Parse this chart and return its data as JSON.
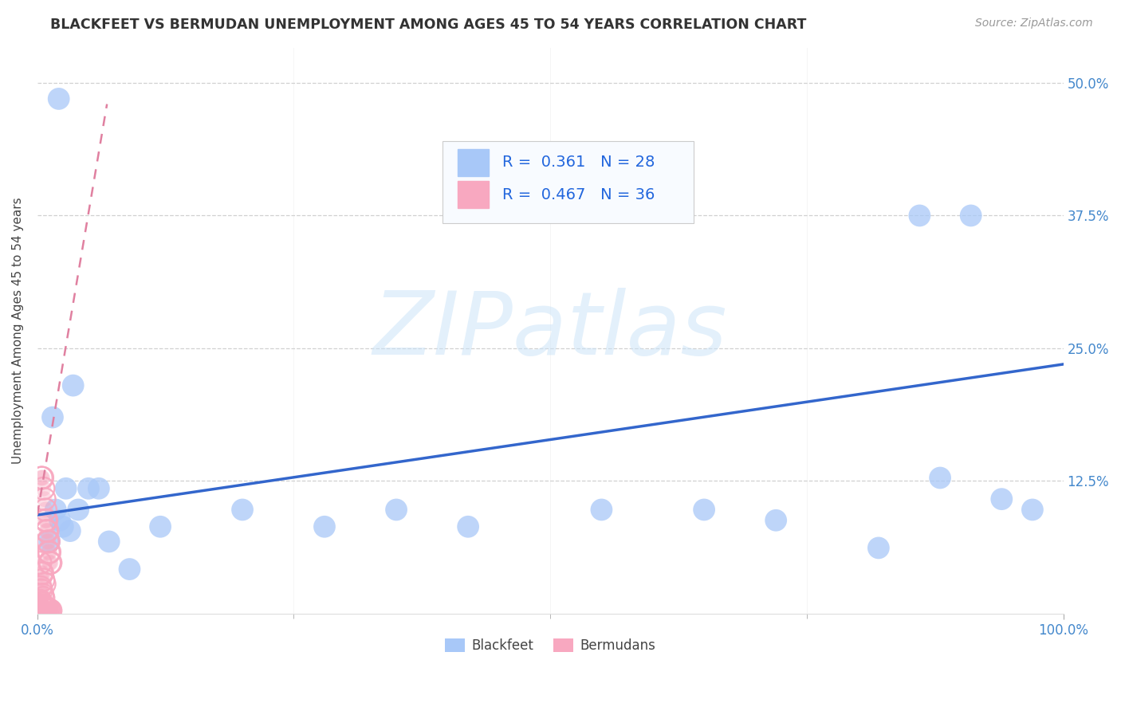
{
  "title": "BLACKFEET VS BERMUDAN UNEMPLOYMENT AMONG AGES 45 TO 54 YEARS CORRELATION CHART",
  "source": "Source: ZipAtlas.com",
  "ylabel": "Unemployment Among Ages 45 to 54 years",
  "xlim": [
    0.0,
    1.0
  ],
  "ylim": [
    0.0,
    0.5333
  ],
  "yticks": [
    0.125,
    0.25,
    0.375,
    0.5
  ],
  "ytick_labels": [
    "12.5%",
    "25.0%",
    "37.5%",
    "50.0%"
  ],
  "xticks": [
    0.0,
    1.0
  ],
  "xtick_labels": [
    "0.0%",
    "100.0%"
  ],
  "blackfeet_color": "#a8c8f8",
  "bermudans_color": "#f8a8c0",
  "blackfeet_line_color": "#3366cc",
  "bermudans_line_color": "#e080a0",
  "R_blackfeet": 0.361,
  "N_blackfeet": 28,
  "R_bermudans": 0.467,
  "N_bermudans": 36,
  "blackfeet_x": [
    0.021,
    0.035,
    0.015,
    0.025,
    0.04,
    0.05,
    0.018,
    0.022,
    0.032,
    0.012,
    0.028,
    0.06,
    0.09,
    0.07,
    0.12,
    0.2,
    0.28,
    0.35,
    0.42,
    0.55,
    0.65,
    0.72,
    0.82,
    0.86,
    0.88,
    0.91,
    0.94,
    0.97
  ],
  "blackfeet_y": [
    0.485,
    0.215,
    0.185,
    0.082,
    0.098,
    0.118,
    0.098,
    0.088,
    0.078,
    0.068,
    0.118,
    0.118,
    0.042,
    0.068,
    0.082,
    0.098,
    0.082,
    0.098,
    0.082,
    0.098,
    0.098,
    0.088,
    0.062,
    0.375,
    0.128,
    0.375,
    0.108,
    0.098
  ],
  "bermudans_x": [
    0.004,
    0.005,
    0.006,
    0.007,
    0.008,
    0.008,
    0.009,
    0.009,
    0.01,
    0.01,
    0.011,
    0.011,
    0.012,
    0.012,
    0.013,
    0.003,
    0.004,
    0.005,
    0.006,
    0.007,
    0.003,
    0.004,
    0.005,
    0.006,
    0.002,
    0.003,
    0.004,
    0.005,
    0.006,
    0.007,
    0.008,
    0.009,
    0.01,
    0.011,
    0.012,
    0.013
  ],
  "bermudans_y": [
    0.128,
    0.128,
    0.118,
    0.108,
    0.098,
    0.088,
    0.088,
    0.078,
    0.078,
    0.068,
    0.068,
    0.058,
    0.058,
    0.048,
    0.048,
    0.048,
    0.038,
    0.038,
    0.032,
    0.028,
    0.025,
    0.022,
    0.018,
    0.015,
    0.012,
    0.012,
    0.01,
    0.008,
    0.007,
    0.006,
    0.005,
    0.005,
    0.004,
    0.004,
    0.003,
    0.003
  ],
  "blackfeet_trend_x": [
    0.0,
    1.0
  ],
  "blackfeet_trend_y": [
    0.093,
    0.235
  ],
  "bermudans_trend_x": [
    0.0,
    0.068
  ],
  "bermudans_trend_y": [
    0.093,
    0.48
  ],
  "watermark": "ZIPatlas",
  "background_color": "#ffffff",
  "grid_color": "#d0d0d0"
}
